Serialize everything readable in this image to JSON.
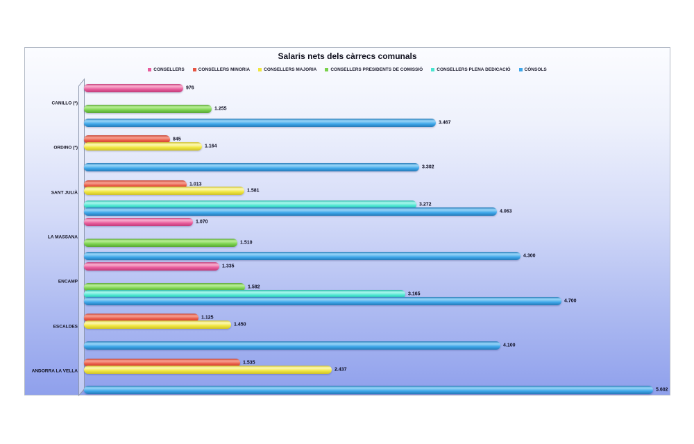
{
  "chart_data": {
    "type": "bar",
    "orientation": "horizontal",
    "title": "Salaris nets dels càrrecs comunals",
    "legend_position": "top",
    "grid": false,
    "xmax": 5602,
    "value_label_format": "thousands-dot",
    "categories": [
      "CANILLO (*)",
      "ORDINO (*)",
      "SANT JULIÀ",
      "LA MASSANA",
      "ENCAMP",
      "ESCALDES",
      "ANDORRA LA VELLA"
    ],
    "series": [
      {
        "name": "CONSELLERS",
        "color": "#e85c9c",
        "highlight": "#f7a6c9",
        "shadow": "#c13a78",
        "values": [
          976,
          null,
          null,
          1070,
          1335,
          null,
          null
        ]
      },
      {
        "name": "CONSELLERS MINORIA",
        "color": "#e75643",
        "highlight": "#f5998a",
        "shadow": "#c6402e",
        "values": [
          null,
          845,
          1013,
          null,
          null,
          1125,
          1535
        ]
      },
      {
        "name": "CONSELLERS MAJORIA",
        "color": "#f0e63e",
        "highlight": "#fbf6a8",
        "shadow": "#cdc02c",
        "values": [
          null,
          1164,
          1581,
          null,
          null,
          1450,
          2437
        ]
      },
      {
        "name": "CONSELLERS PRESIDENTS DE COMISSIÓ",
        "color": "#79d14c",
        "highlight": "#b2ea8e",
        "shadow": "#58a534",
        "values": [
          1255,
          null,
          null,
          1510,
          1582,
          null,
          null
        ]
      },
      {
        "name": "CONSELLERS PLENA DEDICACIÓ",
        "color": "#48e5d0",
        "highlight": "#9ef4e9",
        "shadow": "#2cb8a8",
        "values": [
          null,
          null,
          3272,
          null,
          3165,
          null,
          null
        ]
      },
      {
        "name": "CÒNSOLS",
        "color": "#3da6e9",
        "highlight": "#8ecff5",
        "shadow": "#2579b6",
        "values": [
          3467,
          3302,
          4063,
          4300,
          4700,
          4100,
          5602
        ]
      }
    ],
    "value_labels": [
      [
        "976",
        "845",
        "1.013",
        "1.070",
        "1.335",
        "1.125",
        "1.535"
      ],
      [
        "1.255",
        "1.164",
        "1.581",
        "1.510",
        "1.582",
        "1.450",
        "2.437"
      ],
      [
        "3.467",
        "3.302",
        "3.272",
        "4.300",
        "3.165",
        "4.100",
        "5.602"
      ],
      [
        "4.063",
        "4.700"
      ]
    ]
  }
}
